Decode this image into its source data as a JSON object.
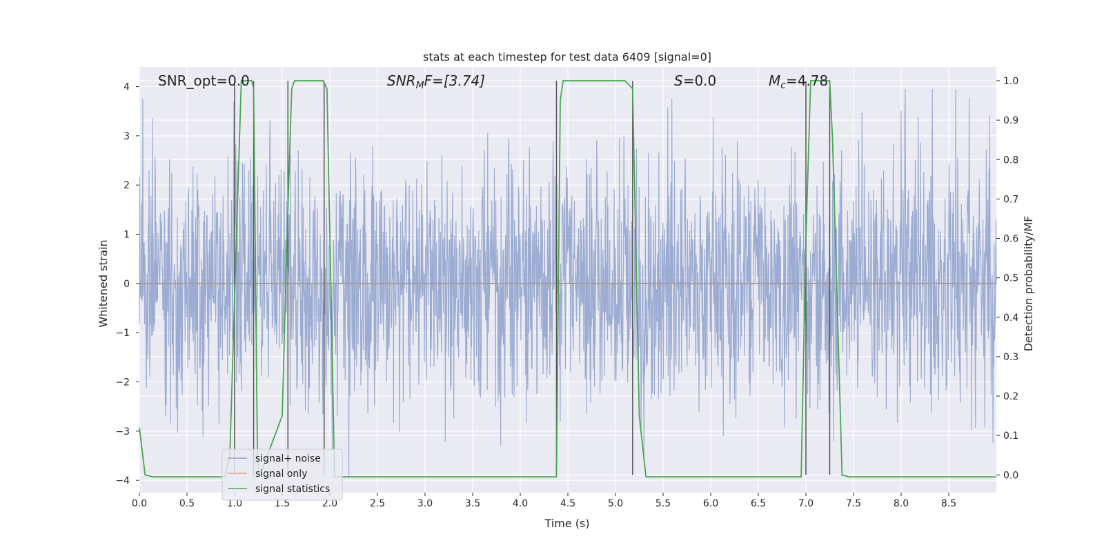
{
  "chart_data": {
    "type": "line",
    "title": "stats at each timestep for test data 6409 [signal=0]",
    "xlabel": "Time (s)",
    "ylabel": "Whitened strain",
    "y2label": "Detection probability/MF",
    "xlim": [
      0.0,
      9.0
    ],
    "ylim": [
      -4.25,
      4.4
    ],
    "y2lim": [
      -0.045,
      1.035
    ],
    "xticks": [
      0.0,
      0.5,
      1.0,
      1.5,
      2.0,
      2.5,
      3.0,
      3.5,
      4.0,
      4.5,
      5.0,
      5.5,
      6.0,
      6.5,
      7.0,
      7.5,
      8.0,
      8.5
    ],
    "xtick_labels": [
      "0.0",
      "0.5",
      "1.0",
      "1.5",
      "2.0",
      "2.5",
      "3.0",
      "3.5",
      "4.0",
      "4.5",
      "5.0",
      "5.5",
      "6.0",
      "6.5",
      "7.0",
      "7.5",
      "8.0",
      "8.5"
    ],
    "yticks": [
      4,
      3,
      2,
      1,
      0,
      -1,
      -2,
      -3,
      -4
    ],
    "ytick_labels": [
      "4",
      "3",
      "2",
      "1",
      "0",
      "−1",
      "−2",
      "−3",
      "−4"
    ],
    "y2ticks": [
      1.0,
      0.9,
      0.8,
      0.7,
      0.6,
      0.5,
      0.4,
      0.3,
      0.2,
      0.1,
      0.0
    ],
    "y2tick_labels": [
      "1.0",
      "0.9",
      "0.8",
      "0.7",
      "0.6",
      "0.5",
      "0.4",
      "0.3",
      "0.2",
      "0.1",
      "0.0"
    ],
    "grid": true,
    "legend_position": "lower-left",
    "annotations": [
      {
        "key": "snr_opt",
        "text": "SNR_opt=0.0",
        "x": 0.2
      },
      {
        "key": "snr_mf",
        "text": "SNR",
        "sub": "M",
        "rest": "F=[3.74]",
        "italic": true,
        "x": 2.6
      },
      {
        "key": "s",
        "text": "S",
        "rest": "=0.0",
        "italic": true,
        "x": 5.6
      },
      {
        "key": "mc",
        "text": "M",
        "sub": "c",
        "rest": "=4.78",
        "italic": true,
        "x": 6.6
      }
    ],
    "series": [
      {
        "name": "signal+ noise",
        "color": "#8da0cb",
        "noise": {
          "samples": 2304,
          "sigma": 1.0,
          "ymin": -3.95,
          "ymax": 3.95
        }
      },
      {
        "name": "signal only",
        "color": "#e5a186",
        "constant": 0.0
      },
      {
        "name": "signal statistics",
        "color": "#4aa452",
        "axis": "right",
        "x": [
          0.0,
          0.06,
          0.14,
          0.9,
          0.95,
          1.0,
          1.07,
          1.18,
          1.2,
          1.24,
          1.26,
          1.5,
          1.55,
          1.6,
          1.63,
          1.7,
          1.9,
          1.93,
          1.97,
          2.05,
          4.38,
          4.42,
          4.45,
          5.1,
          5.18,
          5.25,
          5.32,
          5.4,
          6.95,
          7.0,
          7.05,
          7.25,
          7.28,
          7.38,
          7.45,
          9.0
        ],
        "y": [
          0.12,
          0.0,
          -0.005,
          -0.005,
          0.05,
          0.45,
          1.0,
          1.0,
          0.98,
          0.05,
          -0.005,
          0.15,
          0.6,
          0.98,
          1.0,
          1.0,
          1.0,
          1.0,
          0.98,
          -0.005,
          -0.005,
          0.95,
          1.0,
          1.0,
          0.98,
          0.15,
          -0.005,
          -0.005,
          -0.005,
          0.6,
          1.0,
          1.0,
          0.85,
          0.0,
          -0.005,
          -0.005
        ]
      }
    ],
    "vlines": {
      "color": "#555555",
      "x": [
        1.0,
        1.2,
        1.56,
        1.94,
        4.38,
        5.18,
        7.0,
        7.25
      ]
    },
    "legend": [
      {
        "label": "signal+ noise",
        "color": "#8da0cb"
      },
      {
        "label": "signal only",
        "color": "#e5a186"
      },
      {
        "label": "signal statistics",
        "color": "#4aa452"
      }
    ],
    "colors": {
      "background": "#eaeaf2",
      "grid": "#ffffff",
      "text": "#262626"
    }
  }
}
